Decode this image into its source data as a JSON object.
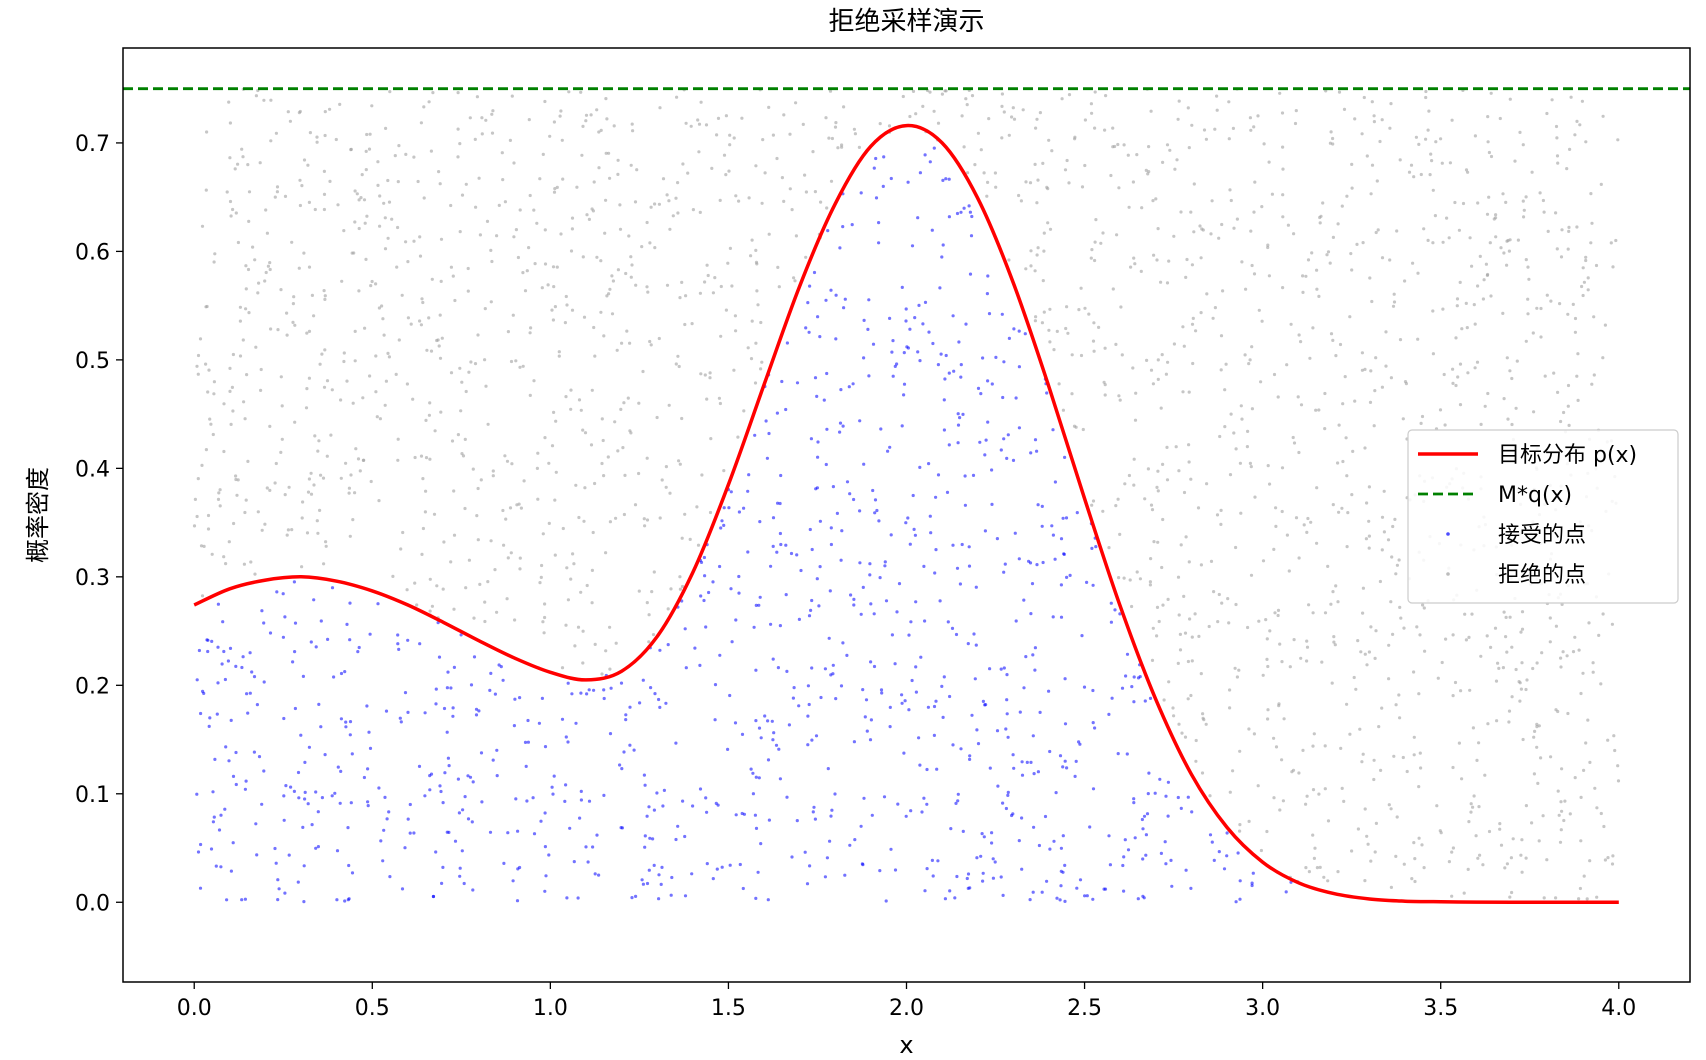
{
  "chart_data": {
    "type": "scatter",
    "title": "拒绝采样演示",
    "xlabel": "x",
    "ylabel": "概率密度",
    "xlim": [
      -0.2,
      4.2
    ],
    "ylim": [
      -0.0735,
      0.7875
    ],
    "xticks": [
      0.0,
      0.5,
      1.0,
      1.5,
      2.0,
      2.5,
      3.0,
      3.5,
      4.0
    ],
    "xtick_labels": [
      "0.0",
      "0.5",
      "1.0",
      "1.5",
      "2.0",
      "2.5",
      "3.0",
      "3.5",
      "4.0"
    ],
    "yticks": [
      0.0,
      0.1,
      0.2,
      0.3,
      0.4,
      0.5,
      0.6,
      0.7
    ],
    "ytick_labels": [
      "0.0",
      "0.1",
      "0.2",
      "0.3",
      "0.4",
      "0.5",
      "0.6",
      "0.7"
    ],
    "grid": false,
    "legend_position": "center-right",
    "series": [
      {
        "name": "目标分布 p(x)",
        "kind": "line",
        "color": "#ff0000",
        "x": [
          0.0,
          0.1,
          0.2,
          0.3,
          0.4,
          0.5,
          0.6,
          0.7,
          0.8,
          0.9,
          1.0,
          1.1,
          1.2,
          1.3,
          1.4,
          1.5,
          1.6,
          1.7,
          1.8,
          1.9,
          2.0,
          2.1,
          2.2,
          2.3,
          2.4,
          2.5,
          2.6,
          2.7,
          2.8,
          2.9,
          3.0,
          3.1,
          3.2,
          3.3,
          3.4,
          3.5,
          3.6,
          3.7,
          3.8,
          3.9,
          4.0
        ],
        "y": [
          0.274,
          0.289,
          0.297,
          0.3,
          0.296,
          0.287,
          0.274,
          0.258,
          0.241,
          0.225,
          0.212,
          0.205,
          0.213,
          0.245,
          0.304,
          0.385,
          0.477,
          0.568,
          0.644,
          0.697,
          0.716,
          0.7,
          0.649,
          0.571,
          0.475,
          0.372,
          0.273,
          0.187,
          0.118,
          0.069,
          0.037,
          0.018,
          0.008,
          0.003,
          0.001,
          0.0005,
          0.0002,
          0.0001,
          0.0,
          0.0,
          0.0
        ]
      },
      {
        "name": "M*q(x)",
        "kind": "hline",
        "color": "#008000",
        "x": [
          0.0,
          4.0
        ],
        "y": [
          0.75,
          0.75
        ]
      },
      {
        "name": "接受的点",
        "kind": "scatter",
        "color": "#0000ff"
      },
      {
        "name": "拒绝的点",
        "kind": "scatter",
        "color": "#a0a0a0"
      }
    ],
    "scatter_sampling": {
      "x_range": [
        0.0,
        4.0
      ],
      "y_range": [
        0.0,
        0.75
      ],
      "count": 3000
    }
  }
}
